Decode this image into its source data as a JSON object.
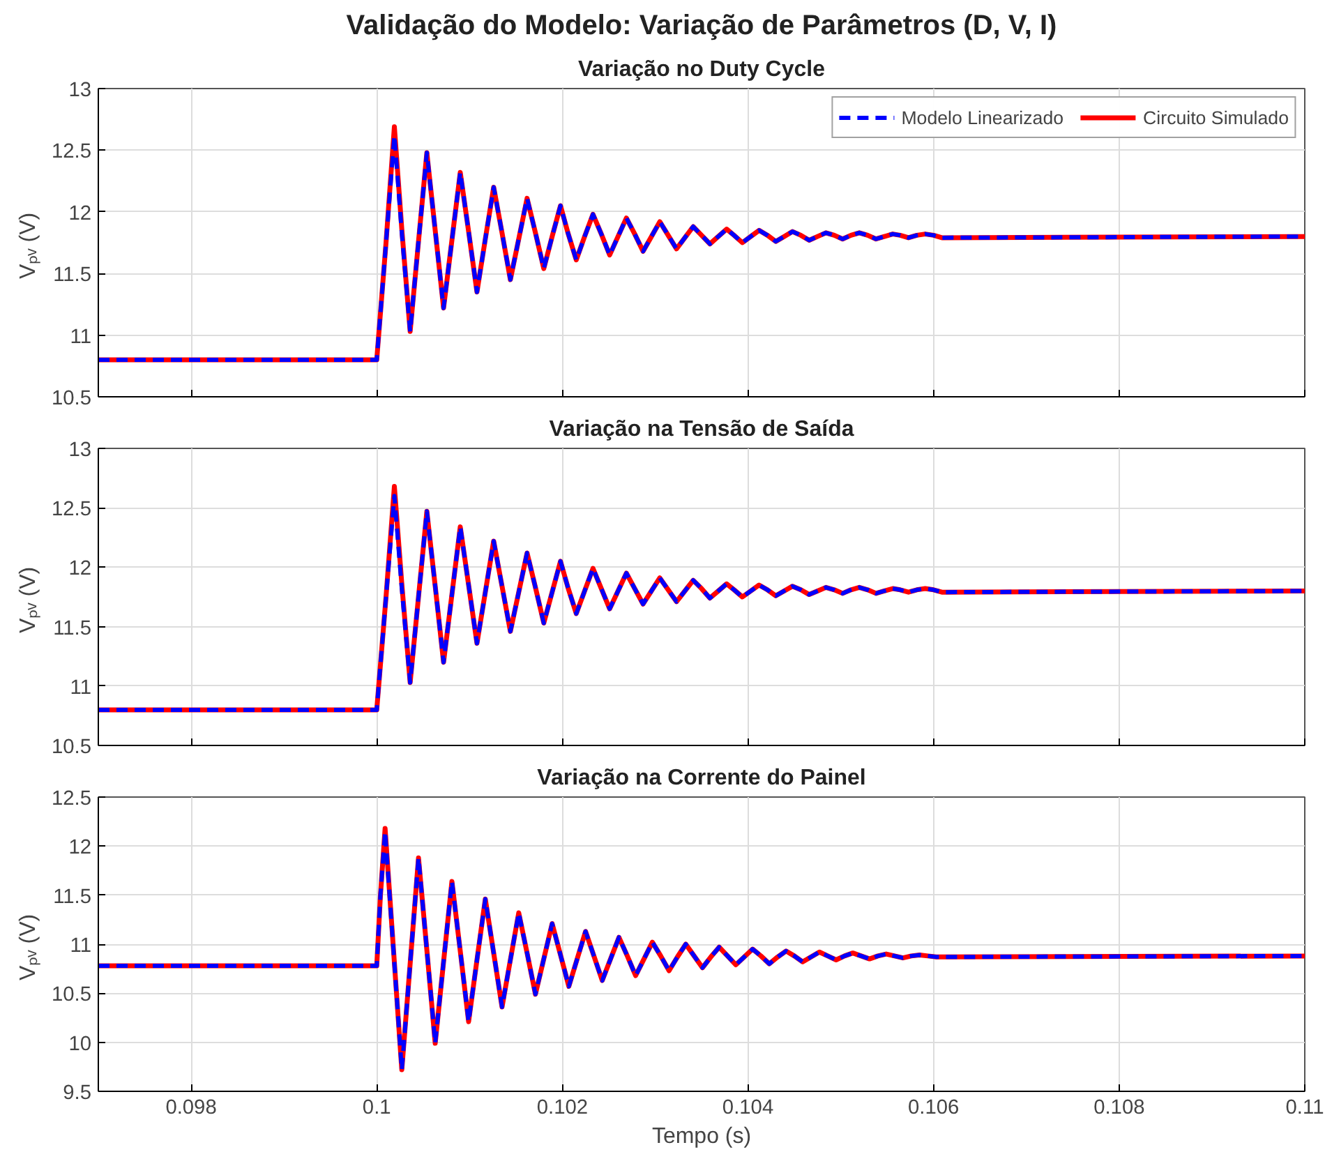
{
  "chart_data": [
    {
      "type": "line",
      "title": "Validação do Modelo: Variação de Parâmetros (D, V, I)",
      "subtitle": "Variação no Duty Cycle",
      "ylabel": "Vₚᵥ  (V)",
      "xlim": [
        0.097,
        0.11
      ],
      "xticks": [
        0.098,
        0.1,
        0.102,
        0.104,
        0.106,
        0.108,
        0.11
      ],
      "ylim": [
        10.5,
        13
      ],
      "yticks": [
        10.5,
        11,
        11.5,
        12,
        12.5,
        13
      ],
      "grid": true,
      "legend": "top right",
      "tick_labels": "y",
      "x": [
        0.097,
        0.1,
        0.1001,
        0.10019,
        0.10027,
        0.10036,
        0.10045,
        0.10054,
        0.10063,
        0.10072,
        0.10081,
        0.1009,
        0.10099,
        0.10108,
        0.10117,
        0.10126,
        0.10135,
        0.10144,
        0.10153,
        0.10162,
        0.10171,
        0.1018,
        0.10189,
        0.10198,
        0.10206,
        0.10215,
        0.10224,
        0.10233,
        0.10242,
        0.10251,
        0.1026,
        0.10269,
        0.10278,
        0.10287,
        0.10296,
        0.10305,
        0.10314,
        0.10323,
        0.10332,
        0.10341,
        0.1035,
        0.10359,
        0.10368,
        0.10377,
        0.10385,
        0.10394,
        0.10403,
        0.10412,
        0.10421,
        0.1043,
        0.10439,
        0.10448,
        0.10457,
        0.10466,
        0.10475,
        0.10484,
        0.10493,
        0.10502,
        0.10511,
        0.1052,
        0.10529,
        0.10538,
        0.10547,
        0.10556,
        0.10564,
        0.10573,
        0.10582,
        0.10591,
        0.106,
        0.10609,
        0.11
      ],
      "series": [
        {
          "name": "Modelo Linearizado",
          "color": "#0000ff",
          "line_style": "dashed",
          "values": [
            10.8,
            10.8,
            11.75,
            12.62,
            11.83,
            11.03,
            11.76,
            12.48,
            11.85,
            11.22,
            11.77,
            12.32,
            11.84,
            11.35,
            11.78,
            12.2,
            11.83,
            11.45,
            11.78,
            12.11,
            11.83,
            11.54,
            11.8,
            12.05,
            11.83,
            11.61,
            11.8,
            11.98,
            11.82,
            11.65,
            11.8,
            11.95,
            11.82,
            11.68,
            11.8,
            11.92,
            11.81,
            11.7,
            11.79,
            11.88,
            11.81,
            11.74,
            11.8,
            11.86,
            11.81,
            11.75,
            11.8,
            11.85,
            11.81,
            11.76,
            11.8,
            11.84,
            11.81,
            11.77,
            11.8,
            11.83,
            11.81,
            11.78,
            11.81,
            11.83,
            11.81,
            11.78,
            11.8,
            11.82,
            11.81,
            11.79,
            11.81,
            11.82,
            11.81,
            11.79,
            11.8
          ]
        },
        {
          "name": "Circuito Simulado",
          "color": "#ff0000",
          "line_style": "solid",
          "values": [
            10.8,
            10.8,
            11.75,
            12.69,
            11.86,
            11.03,
            11.76,
            12.48,
            11.85,
            11.22,
            11.77,
            12.32,
            11.84,
            11.35,
            11.78,
            12.2,
            11.83,
            11.45,
            11.78,
            12.11,
            11.83,
            11.54,
            11.8,
            12.05,
            11.83,
            11.61,
            11.8,
            11.98,
            11.82,
            11.65,
            11.8,
            11.95,
            11.82,
            11.68,
            11.8,
            11.92,
            11.81,
            11.7,
            11.79,
            11.88,
            11.81,
            11.74,
            11.8,
            11.86,
            11.81,
            11.75,
            11.8,
            11.85,
            11.81,
            11.76,
            11.8,
            11.84,
            11.81,
            11.77,
            11.8,
            11.83,
            11.81,
            11.78,
            11.81,
            11.83,
            11.81,
            11.78,
            11.8,
            11.82,
            11.81,
            11.79,
            11.81,
            11.82,
            11.81,
            11.79,
            11.8
          ]
        }
      ]
    },
    {
      "type": "line",
      "title": "Variação na Tensão de Saída",
      "ylabel": "Vₚᵥ  (V)",
      "xlim": [
        0.097,
        0.11
      ],
      "xticks": [
        0.098,
        0.1,
        0.102,
        0.104,
        0.106,
        0.108,
        0.11
      ],
      "ylim": [
        10.5,
        13
      ],
      "yticks": [
        10.5,
        11,
        11.5,
        12,
        12.5,
        13
      ],
      "grid": true,
      "tick_labels": "y",
      "x": [
        0.097,
        0.1,
        0.1001,
        0.10019,
        0.10027,
        0.10036,
        0.10045,
        0.10054,
        0.10063,
        0.10072,
        0.10081,
        0.1009,
        0.10099,
        0.10108,
        0.10117,
        0.10126,
        0.10135,
        0.10144,
        0.10153,
        0.10162,
        0.10171,
        0.1018,
        0.10189,
        0.10198,
        0.10206,
        0.10215,
        0.10224,
        0.10233,
        0.10242,
        0.10251,
        0.1026,
        0.10269,
        0.10278,
        0.10287,
        0.10296,
        0.10305,
        0.10314,
        0.10323,
        0.10332,
        0.10341,
        0.1035,
        0.10359,
        0.10368,
        0.10377,
        0.10385,
        0.10394,
        0.10403,
        0.10412,
        0.10421,
        0.1043,
        0.10439,
        0.10448,
        0.10457,
        0.10466,
        0.10475,
        0.10484,
        0.10493,
        0.10502,
        0.10511,
        0.1052,
        0.10529,
        0.10538,
        0.10547,
        0.10556,
        0.10564,
        0.10573,
        0.10582,
        0.10591,
        0.106,
        0.10609,
        0.11
      ],
      "series": [
        {
          "color": "#0000ff",
          "line_style": "dashed",
          "values": [
            10.8,
            10.8,
            11.75,
            12.6,
            11.82,
            11.03,
            11.75,
            12.47,
            11.84,
            11.2,
            11.77,
            12.34,
            11.85,
            11.36,
            11.79,
            12.22,
            11.84,
            11.46,
            11.79,
            12.12,
            11.83,
            11.53,
            11.79,
            12.05,
            11.83,
            11.61,
            11.8,
            11.99,
            11.82,
            11.65,
            11.8,
            11.95,
            11.82,
            11.69,
            11.8,
            11.91,
            11.81,
            11.71,
            11.8,
            11.89,
            11.82,
            11.74,
            11.8,
            11.86,
            11.81,
            11.75,
            11.8,
            11.85,
            11.81,
            11.76,
            11.8,
            11.84,
            11.81,
            11.77,
            11.8,
            11.83,
            11.81,
            11.78,
            11.81,
            11.83,
            11.81,
            11.78,
            11.8,
            11.82,
            11.81,
            11.79,
            11.81,
            11.82,
            11.81,
            11.79,
            11.8
          ]
        },
        {
          "color": "#ff0000",
          "line_style": "solid",
          "values": [
            10.8,
            10.8,
            11.75,
            12.68,
            11.86,
            11.03,
            11.75,
            12.47,
            11.84,
            11.2,
            11.77,
            12.34,
            11.85,
            11.36,
            11.79,
            12.22,
            11.84,
            11.46,
            11.79,
            12.12,
            11.83,
            11.53,
            11.79,
            12.05,
            11.83,
            11.61,
            11.8,
            11.99,
            11.82,
            11.65,
            11.8,
            11.95,
            11.82,
            11.69,
            11.8,
            11.91,
            11.81,
            11.71,
            11.8,
            11.89,
            11.82,
            11.74,
            11.8,
            11.86,
            11.81,
            11.75,
            11.8,
            11.85,
            11.81,
            11.76,
            11.8,
            11.84,
            11.81,
            11.77,
            11.8,
            11.83,
            11.81,
            11.78,
            11.81,
            11.83,
            11.81,
            11.78,
            11.8,
            11.82,
            11.81,
            11.79,
            11.81,
            11.82,
            11.81,
            11.79,
            11.8
          ]
        }
      ]
    },
    {
      "type": "line",
      "title": "Variação na Corrente do Painel",
      "xlabel": "Tempo (s)",
      "ylabel": "Vₚᵥ  (V)",
      "xlim": [
        0.097,
        0.11
      ],
      "xticks": [
        0.098,
        0.1,
        0.102,
        0.104,
        0.106,
        0.108,
        0.11
      ],
      "ylim": [
        9.5,
        12.5
      ],
      "yticks": [
        9.5,
        10,
        10.5,
        11,
        11.5,
        12,
        12.5
      ],
      "grid": true,
      "x": [
        0.097,
        0.1,
        0.10004,
        0.10009,
        0.10018,
        0.10027,
        0.10036,
        0.10045,
        0.10054,
        0.10063,
        0.10072,
        0.10081,
        0.1009,
        0.10099,
        0.10108,
        0.10117,
        0.10126,
        0.10135,
        0.10144,
        0.10153,
        0.10162,
        0.10171,
        0.1018,
        0.10189,
        0.10198,
        0.10207,
        0.10216,
        0.10225,
        0.10234,
        0.10243,
        0.10252,
        0.10261,
        0.1027,
        0.10279,
        0.10288,
        0.10297,
        0.10306,
        0.10315,
        0.10324,
        0.10333,
        0.10342,
        0.10351,
        0.1036,
        0.10369,
        0.10378,
        0.10387,
        0.10396,
        0.10405,
        0.10414,
        0.10423,
        0.10432,
        0.10441,
        0.1045,
        0.10459,
        0.10468,
        0.10477,
        0.10486,
        0.10495,
        0.10504,
        0.10513,
        0.10522,
        0.10531,
        0.1054,
        0.10549,
        0.10558,
        0.10567,
        0.10576,
        0.10585,
        0.10594,
        0.10603,
        0.11
      ],
      "series": [
        {
          "color": "#0000ff",
          "line_style": "dashed",
          "values": [
            10.78,
            10.78,
            11.5,
            12.15,
            10.94,
            9.72,
            10.8,
            11.88,
            10.94,
            9.99,
            10.82,
            11.64,
            10.93,
            10.21,
            10.84,
            11.46,
            10.91,
            10.36,
            10.84,
            11.32,
            10.91,
            10.49,
            10.85,
            11.21,
            10.89,
            10.57,
            10.85,
            11.13,
            10.88,
            10.63,
            10.85,
            11.07,
            10.88,
            10.68,
            10.85,
            11.02,
            10.88,
            10.73,
            10.87,
            11.0,
            10.88,
            10.76,
            10.87,
            10.97,
            10.88,
            10.79,
            10.87,
            10.95,
            10.88,
            10.8,
            10.87,
            10.93,
            10.88,
            10.82,
            10.87,
            10.92,
            10.88,
            10.84,
            10.88,
            10.91,
            10.88,
            10.85,
            10.88,
            10.9,
            10.88,
            10.86,
            10.88,
            10.89,
            10.88,
            10.87,
            10.88
          ]
        },
        {
          "color": "#ff0000",
          "line_style": "solid",
          "values": [
            10.78,
            10.78,
            11.5,
            12.18,
            10.95,
            9.72,
            10.8,
            11.88,
            10.94,
            9.99,
            10.82,
            11.64,
            10.93,
            10.21,
            10.84,
            11.46,
            10.91,
            10.36,
            10.84,
            11.32,
            10.91,
            10.49,
            10.85,
            11.21,
            10.89,
            10.57,
            10.85,
            11.13,
            10.88,
            10.63,
            10.85,
            11.07,
            10.88,
            10.68,
            10.85,
            11.02,
            10.88,
            10.73,
            10.87,
            11.0,
            10.88,
            10.76,
            10.87,
            10.97,
            10.88,
            10.79,
            10.87,
            10.95,
            10.88,
            10.8,
            10.87,
            10.93,
            10.88,
            10.82,
            10.87,
            10.92,
            10.88,
            10.84,
            10.88,
            10.91,
            10.88,
            10.85,
            10.88,
            10.9,
            10.88,
            10.86,
            10.88,
            10.89,
            10.88,
            10.87,
            10.88
          ]
        }
      ]
    }
  ]
}
